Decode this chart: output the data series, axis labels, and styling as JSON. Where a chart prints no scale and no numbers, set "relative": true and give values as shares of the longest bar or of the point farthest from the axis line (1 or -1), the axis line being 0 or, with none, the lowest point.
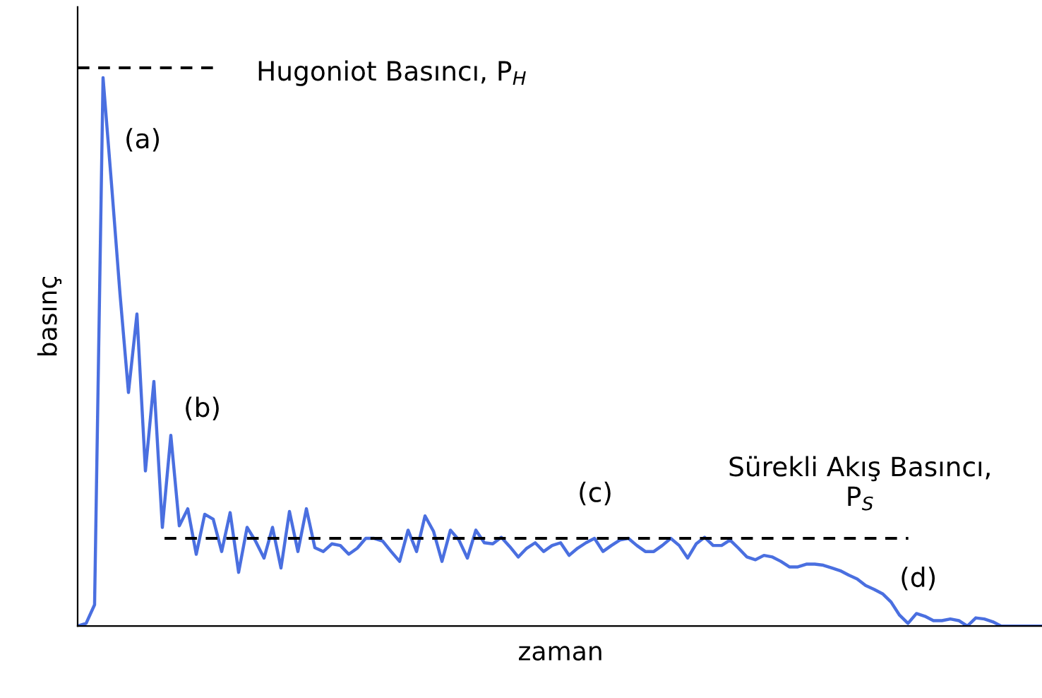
{
  "chart_data": {
    "type": "line",
    "relative": true,
    "xlabel": "zaman",
    "ylabel": "basınç",
    "categories": [
      null,
      null,
      null,
      null,
      null,
      null,
      null,
      null,
      null,
      null,
      null,
      null,
      null,
      null,
      null,
      null,
      null,
      null,
      null,
      null,
      null,
      null,
      null,
      null,
      null,
      null,
      null,
      null,
      null,
      null,
      null,
      null,
      null,
      null,
      null,
      null,
      null,
      null,
      null,
      null,
      null,
      null,
      null,
      null,
      null,
      null,
      null,
      null,
      null,
      null,
      null,
      null,
      null,
      null,
      null,
      null,
      null,
      null,
      null,
      null,
      null,
      null,
      null,
      null,
      null,
      null,
      null,
      null,
      null,
      null,
      null,
      null,
      null,
      null,
      null,
      null,
      null,
      null,
      null,
      null,
      null,
      null,
      null,
      null,
      null,
      null,
      null,
      null,
      null,
      null,
      null,
      null,
      null,
      null,
      null,
      null,
      null,
      null,
      null,
      null,
      null,
      null,
      null,
      null,
      null,
      null,
      null,
      null,
      null,
      null,
      null,
      null,
      null,
      null,
      null
    ],
    "series": [
      {
        "color": "#4a6fe0",
        "values": [
          0,
          0.005,
          0.039,
          1.0,
          0.806,
          0.606,
          0.426,
          0.569,
          0.283,
          0.446,
          0.18,
          0.348,
          0.183,
          0.214,
          0.131,
          0.204,
          0.195,
          0.136,
          0.207,
          0.098,
          0.18,
          0.155,
          0.124,
          0.18,
          0.106,
          0.209,
          0.136,
          0.214,
          0.143,
          0.136,
          0.15,
          0.147,
          0.131,
          0.142,
          0.16,
          0.16,
          0.155,
          0.136,
          0.118,
          0.175,
          0.136,
          0.201,
          0.173,
          0.118,
          0.175,
          0.157,
          0.124,
          0.175,
          0.152,
          0.15,
          0.162,
          0.145,
          0.126,
          0.142,
          0.152,
          0.136,
          0.147,
          0.152,
          0.129,
          0.142,
          0.152,
          0.16,
          0.136,
          0.147,
          0.157,
          0.16,
          0.147,
          0.136,
          0.136,
          0.147,
          0.16,
          0.147,
          0.124,
          0.15,
          0.162,
          0.147,
          0.147,
          0.157,
          0.142,
          0.126,
          0.121,
          0.129,
          0.126,
          0.118,
          0.108,
          0.108,
          0.113,
          0.113,
          0.111,
          0.106,
          0.101,
          0.093,
          0.086,
          0.074,
          0.067,
          0.059,
          0.044,
          0.02,
          0.005,
          0.023,
          0.018,
          0.01,
          0.01,
          0.013,
          0.01,
          0,
          0.015,
          0.013,
          0.008,
          0,
          0,
          0,
          0,
          0,
          0
        ]
      }
    ],
    "ref_lines": [
      {
        "axis": "y",
        "value": 1.018,
        "label": "Hugoniot Basıncı, P$_{H}$",
        "color": "#000000",
        "line_style": "dashed"
      },
      {
        "axis": "y",
        "value": 0.16,
        "label": "Sürekli Akış Basıncı,\nP$_{S}$",
        "color": "#000000",
        "line_style": "dashed"
      }
    ],
    "annotations": [
      "(a)",
      "(b)",
      "(c)",
      "(d)"
    ]
  }
}
